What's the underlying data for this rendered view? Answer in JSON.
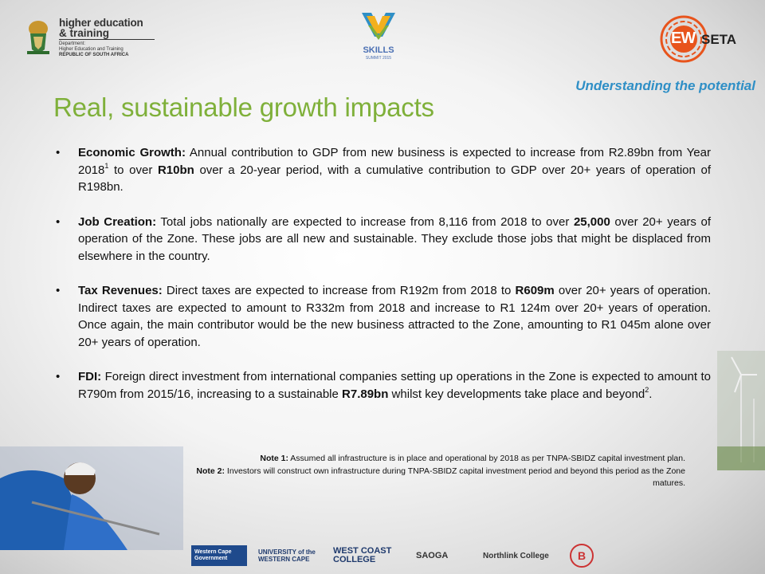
{
  "header": {
    "dhet": {
      "line1": "higher education",
      "line2": "& training",
      "line3": "Department:",
      "line4": "Higher Education and Training",
      "line5": "REPUBLIC OF SOUTH AFRICA"
    },
    "skills": {
      "name": "SKILLS",
      "sub": "SUMMIT 2015"
    },
    "ewseta": {
      "ew": "EW",
      "seta": "SETA"
    },
    "tagline": "Understanding the potential"
  },
  "title": "Real, sustainable growth impacts",
  "bullets": [
    {
      "lead": "Economic Growth:",
      "t1": " Annual contribution to GDP from new business is expected to increase from R2.89bn from Year 2018",
      "sup1": "1",
      "t2": " to over ",
      "strong1": "R10bn",
      "t3": " over a 20-year period, with a cumulative contribution to GDP over 20+ years of operation of R198bn."
    },
    {
      "lead": "Job Creation:",
      "t1": " Total jobs nationally are expected to increase from 8,116 from 2018 to over ",
      "strong1": "25,000",
      "t2": " over 20+ years of operation of the Zone. These jobs are all new and sustainable. They exclude those jobs that might be displaced from elsewhere in the country."
    },
    {
      "lead": "Tax Revenues:",
      "t1": " Direct taxes are expected to increase from R192m from 2018 to ",
      "strong1": "R609m",
      "t2": " over 20+ years of operation.  Indirect taxes are expected to amount to R332m from 2018 and increase to R1 124m over 20+ years of operation.  Once again, the main contributor would be the new business attracted to the Zone, amounting to R1 045m alone over 20+ years of operation."
    },
    {
      "lead": "FDI:",
      "t1": " Foreign direct investment from international companies setting up operations in the Zone is expected to amount to R790m from 2015/16, increasing to a sustainable ",
      "strong1": "R7.89bn",
      "t2": " whilst key developments take place and beyond",
      "sup1": "2",
      "t3": "."
    }
  ],
  "bullet_symbol": "•",
  "notes": [
    {
      "label": "Note 1:",
      "text": " Assumed all infrastructure is in place and operational by 2018 as per TNPA-SBIDZ capital investment plan."
    },
    {
      "label": "Note 2:",
      "text": " Investors will construct own infrastructure during TNPA-SBIDZ capital investment period and beyond this period as the Zone matures."
    }
  ],
  "footer": {
    "wc": "Western Cape Government",
    "uwc": "UNIVERSITY of the WESTERN CAPE",
    "wcc": "WEST COAST COLLEGE",
    "saoga": "SAOGA",
    "northlink": "Northlink College"
  },
  "colors": {
    "title": "#7fb03a",
    "tagline": "#2f8fc6",
    "ewseta_orange": "#e8541c"
  }
}
